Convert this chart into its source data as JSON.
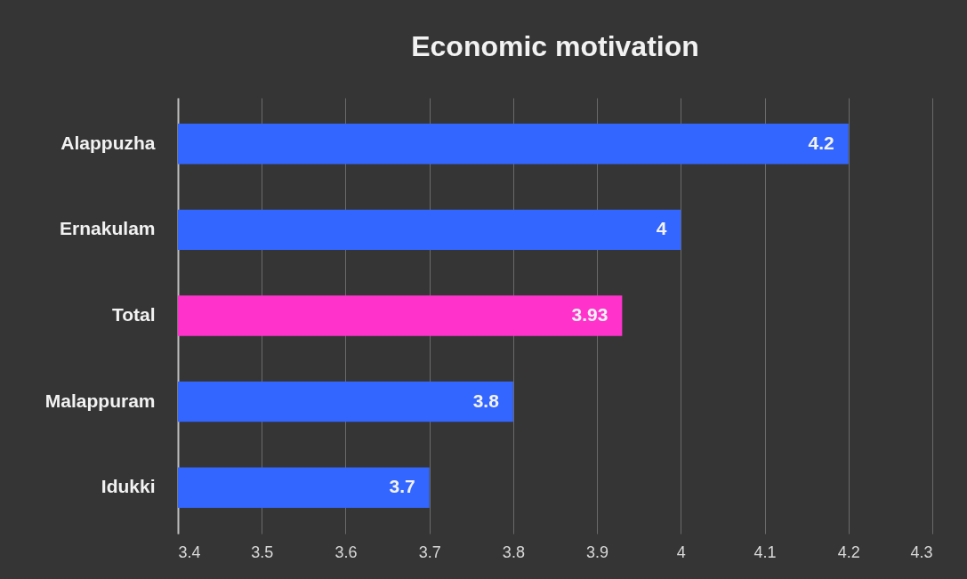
{
  "chart_data": {
    "type": "bar",
    "orientation": "horizontal",
    "title": "Economic motivation",
    "categories": [
      "Alappuzha",
      "Ernakulam",
      "Total",
      "Malappuram",
      "Idukki"
    ],
    "values": [
      4.2,
      4,
      3.93,
      3.8,
      3.7
    ],
    "colors": [
      "#3366ff",
      "#3366ff",
      "#ff33cc",
      "#3366ff",
      "#3366ff"
    ],
    "xlim": [
      3.4,
      4.3
    ],
    "xticks": [
      3.4,
      3.5,
      3.6,
      3.7,
      3.8,
      3.9,
      4,
      4.1,
      4.2,
      4.3
    ],
    "grid": "x",
    "data_labels": true
  }
}
